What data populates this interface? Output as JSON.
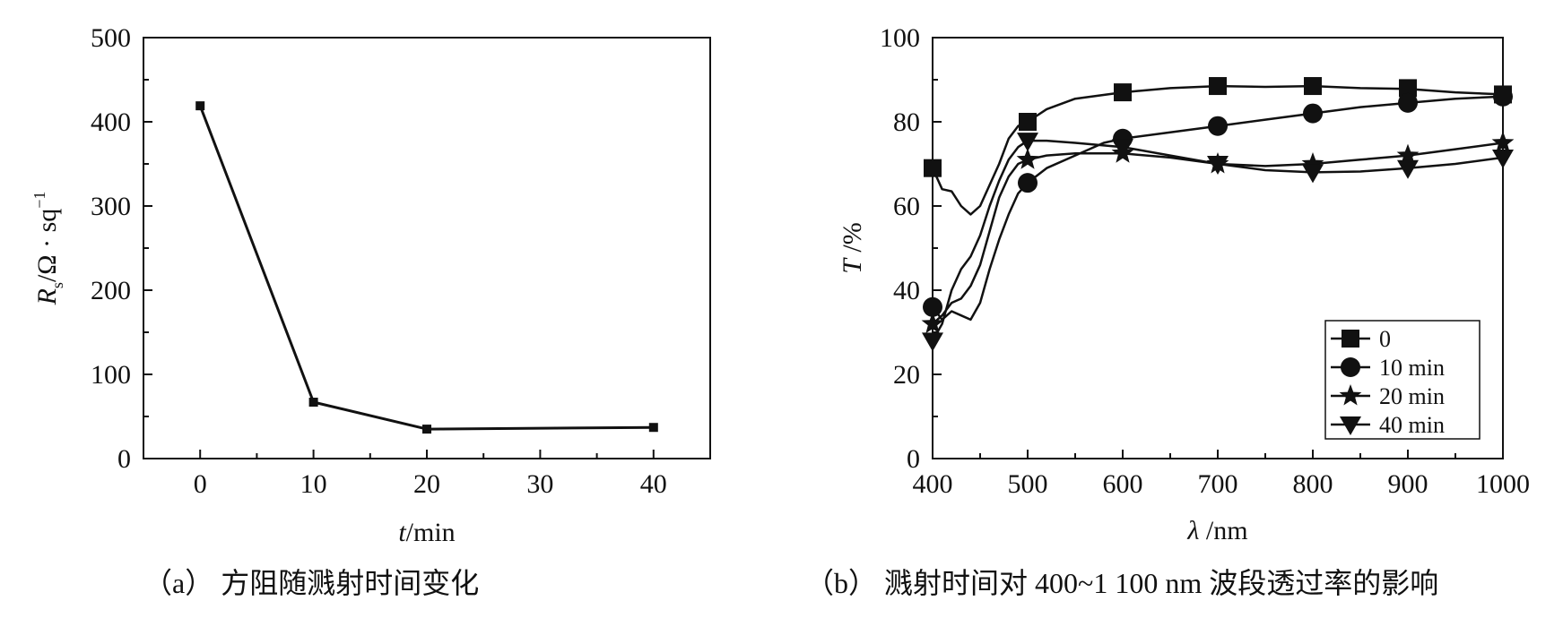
{
  "colors": {
    "ink": "#111111",
    "background": "#ffffff"
  },
  "chart_data": [
    {
      "type": "line",
      "caption": "（a） 方阻随溅射时间变化",
      "xlabel": {
        "var": "t",
        "unit": "/min"
      },
      "ylabel": {
        "var": "R",
        "sub": "s",
        "unit": "/Ω · sq",
        "sup": "−1"
      },
      "xlim": [
        -5,
        45
      ],
      "ylim": [
        0,
        500
      ],
      "xticks": [
        0,
        10,
        20,
        30,
        40
      ],
      "yticks": [
        0,
        100,
        200,
        300,
        400,
        500
      ],
      "grid": false,
      "series": [
        {
          "x": [
            0,
            10,
            20,
            40
          ],
          "y": [
            419,
            67,
            35,
            37
          ],
          "marker": "square"
        }
      ]
    },
    {
      "type": "line",
      "caption": "（b） 溅射时间对 400~1 100 nm 波段透过率的影响",
      "xlabel": {
        "var": "λ",
        "unit": " /nm"
      },
      "ylabel": {
        "var": "T",
        "unit": " /%"
      },
      "xlim": [
        400,
        1000
      ],
      "ylim": [
        0,
        100
      ],
      "xticks": [
        400,
        500,
        600,
        700,
        800,
        900,
        1000
      ],
      "yticks": [
        0,
        20,
        40,
        60,
        80,
        100
      ],
      "grid": false,
      "legend_position": "bottom-right",
      "series": [
        {
          "name": "0",
          "marker": "square",
          "x": [
            400,
            410,
            420,
            430,
            440,
            450,
            460,
            470,
            480,
            490,
            500,
            520,
            550,
            600,
            650,
            700,
            750,
            800,
            850,
            900,
            950,
            1000
          ],
          "y": [
            69,
            64,
            63.5,
            60,
            58,
            60,
            65,
            70,
            76,
            79,
            80,
            83,
            85.5,
            87,
            88,
            88.5,
            88.3,
            88.5,
            88,
            87.8,
            87,
            86.5
          ],
          "markers_x": [
            400,
            500,
            600,
            700,
            800,
            900,
            1000
          ],
          "markers_y": [
            69,
            80,
            87,
            88.5,
            88.5,
            88,
            86.5
          ]
        },
        {
          "name": "10 min",
          "marker": "circle",
          "x": [
            400,
            410,
            420,
            430,
            440,
            450,
            460,
            470,
            480,
            490,
            500,
            520,
            550,
            580,
            600,
            650,
            700,
            750,
            800,
            850,
            900,
            950,
            1000
          ],
          "y": [
            36,
            33,
            35,
            34,
            33,
            37,
            45,
            52,
            58,
            63,
            65.5,
            69,
            72,
            75,
            76,
            77.5,
            79,
            80.5,
            82,
            83.5,
            84.5,
            85.5,
            86
          ],
          "markers_x": [
            400,
            500,
            600,
            700,
            800,
            900,
            1000
          ],
          "markers_y": [
            36,
            65.5,
            76,
            79,
            82,
            84.5,
            86
          ]
        },
        {
          "name": "20 min",
          "marker": "star",
          "x": [
            400,
            410,
            420,
            430,
            440,
            450,
            460,
            470,
            480,
            490,
            500,
            520,
            550,
            600,
            650,
            700,
            750,
            800,
            850,
            900,
            950,
            1000
          ],
          "y": [
            32,
            34,
            37,
            38,
            41,
            46,
            54,
            62,
            67,
            70,
            71,
            72,
            72.5,
            72.5,
            71.5,
            70,
            69.5,
            70,
            71,
            72,
            73.5,
            75
          ],
          "markers_x": [
            400,
            500,
            600,
            700,
            800,
            900,
            1000
          ],
          "markers_y": [
            32,
            71,
            72.5,
            70,
            70,
            72,
            75
          ]
        },
        {
          "name": "40 min",
          "marker": "triangle-down",
          "x": [
            400,
            410,
            420,
            430,
            440,
            450,
            460,
            470,
            480,
            490,
            500,
            520,
            550,
            600,
            650,
            700,
            750,
            800,
            850,
            900,
            950,
            1000
          ],
          "y": [
            28,
            32,
            40,
            45,
            48,
            53,
            60,
            66,
            71,
            74,
            75.5,
            75.5,
            75,
            74,
            72,
            70,
            68.5,
            68,
            68.2,
            69,
            70,
            71.5
          ],
          "markers_x": [
            400,
            500,
            600,
            700,
            800,
            900,
            1000
          ],
          "markers_y": [
            28,
            75.5,
            74,
            70,
            68,
            69,
            71.5
          ]
        }
      ]
    }
  ]
}
